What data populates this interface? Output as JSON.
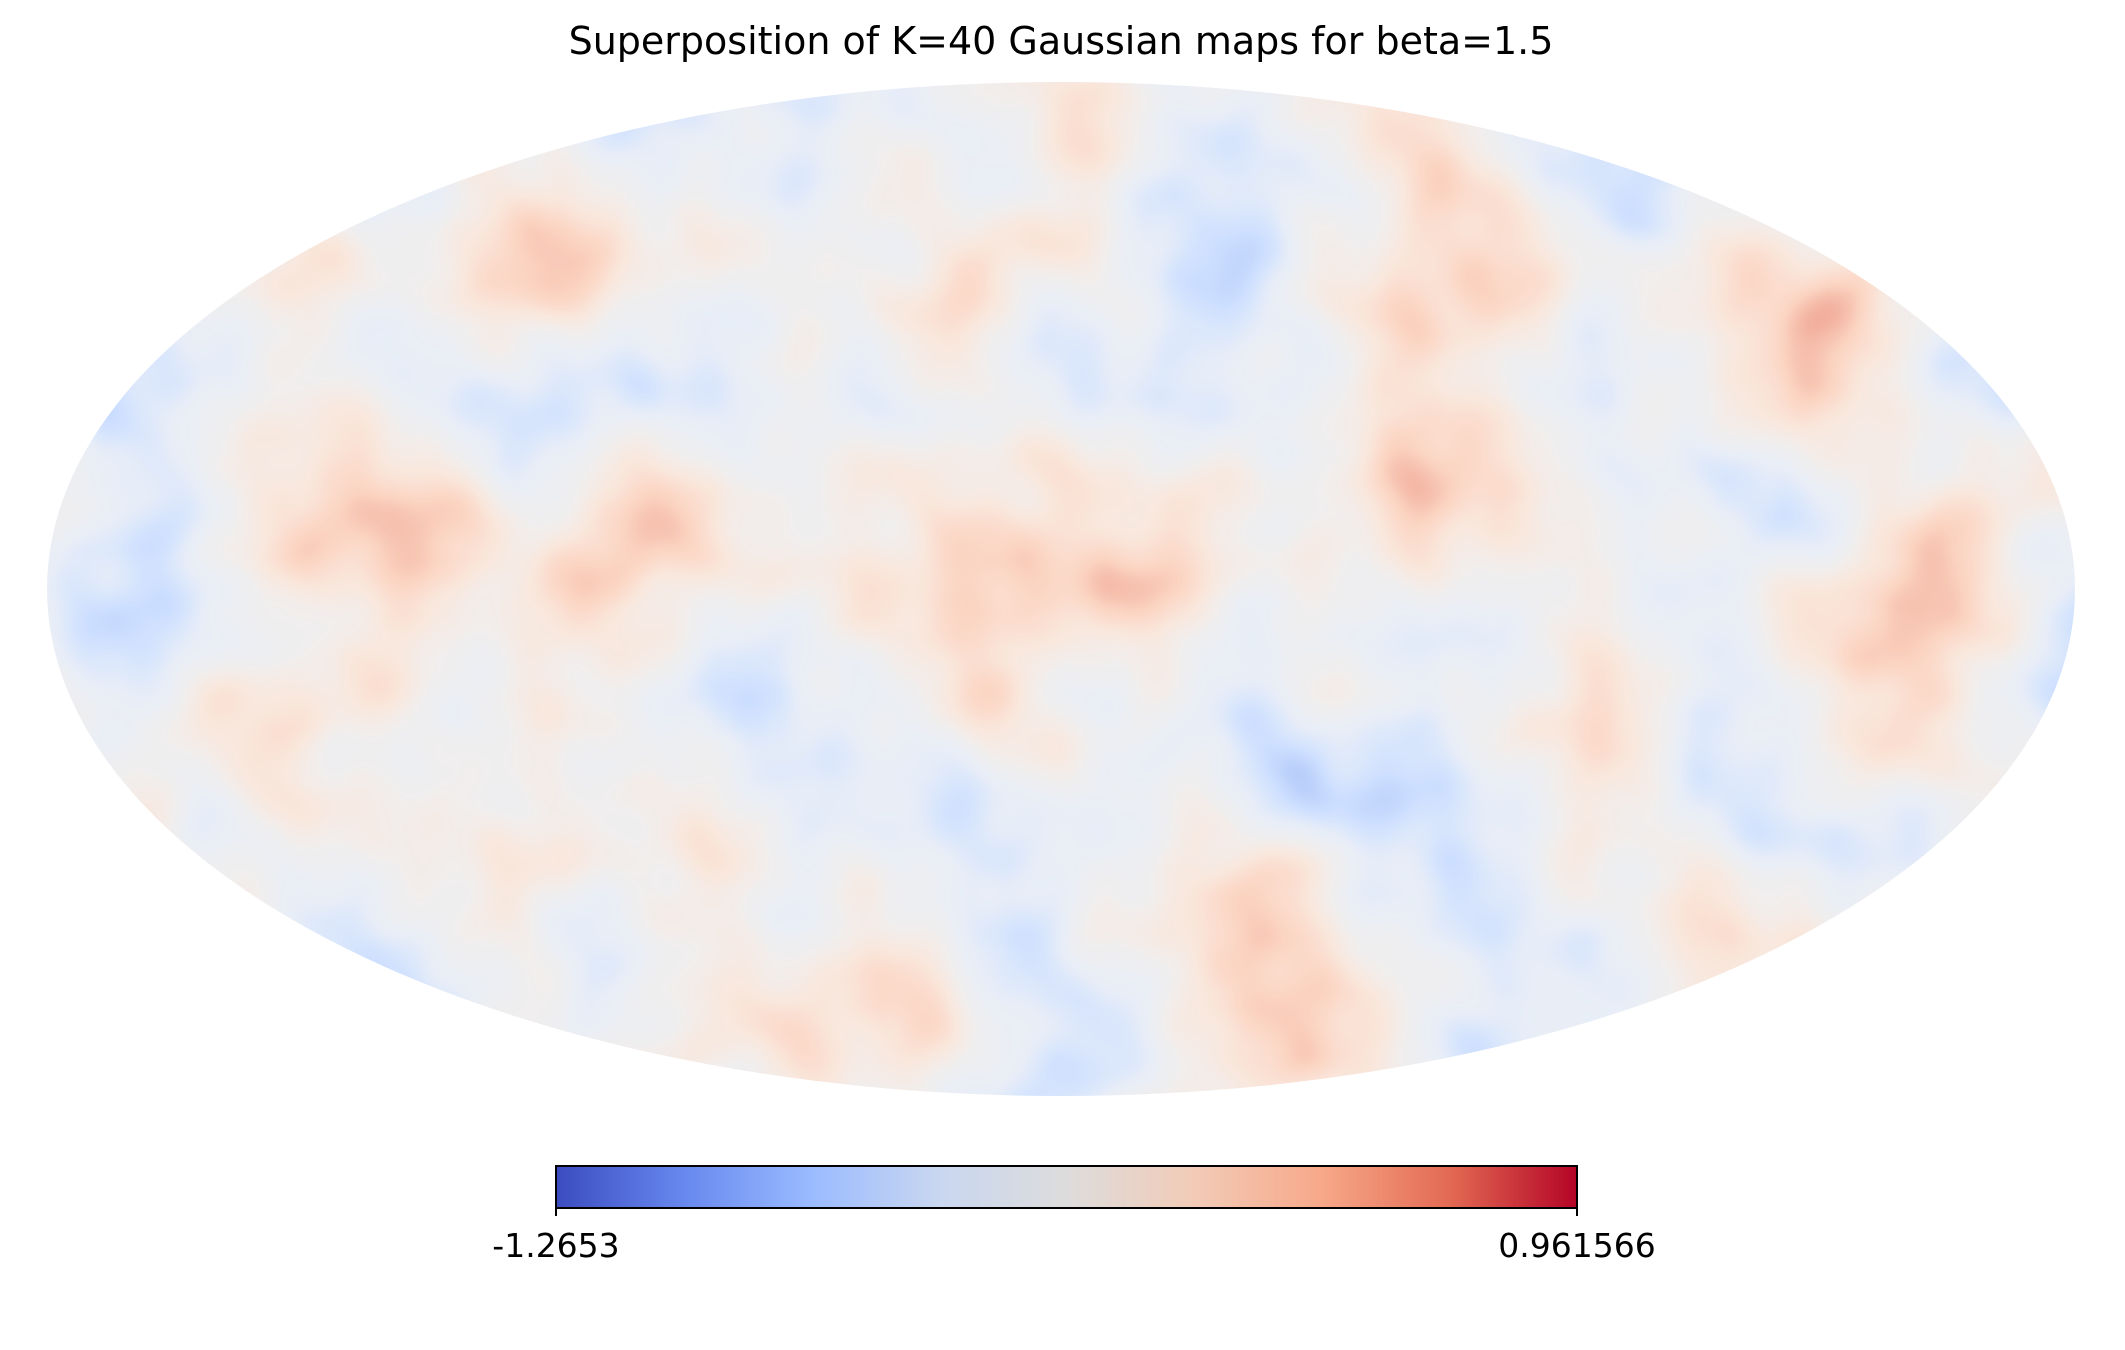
{
  "chart_data": {
    "type": "heatmap",
    "projection": "mollweide",
    "title": "Superposition of K=40 Gaussian maps for beta=1.5",
    "colormap": "coolwarm",
    "colormap_stops": [
      "#3b4cc0",
      "#6788ee",
      "#9abbff",
      "#c9d7f0",
      "#dddcdc",
      "#f2cbb7",
      "#f7a889",
      "#e36a53",
      "#b40426"
    ],
    "colorbar": {
      "min": -1.2653,
      "max": 0.961566,
      "min_label": "-1.2653",
      "max_label": "0.961566"
    }
  }
}
